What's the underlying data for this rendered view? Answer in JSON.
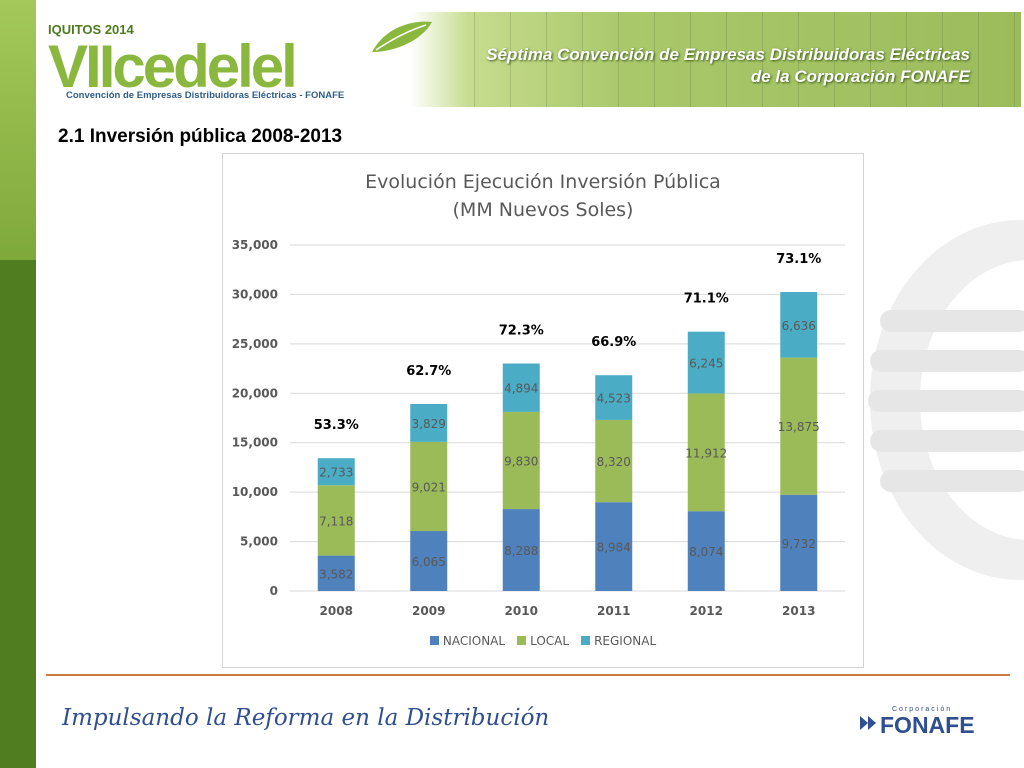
{
  "header": {
    "logo_year": "IQUITOS 2014",
    "logo_word": "VIIcedelel",
    "logo_subtitle": "Convención de Empresas Distribuidoras Eléctricas - FONAFE",
    "banner_line1": "Séptima Convención de Empresas Distribuidoras Eléctricas",
    "banner_line2": "de la Corporación FONAFE"
  },
  "section_title": "2.1 Inversión pública 2008-2013",
  "footer": {
    "tagline": "Impulsando la Reforma en la Distribución",
    "brand_small": "Corporación",
    "brand": "FONAFE"
  },
  "colors": {
    "nacional": "#4f81bd",
    "local": "#9bbb59",
    "regional": "#4bacc6"
  },
  "chart_data": {
    "type": "bar",
    "stacked": true,
    "title_line1": "Evolución Ejecución Inversión Pública",
    "title_line2": "(MM Nuevos Soles)",
    "categories": [
      "2008",
      "2009",
      "2010",
      "2011",
      "2012",
      "2013"
    ],
    "series": [
      {
        "name": "NACIONAL",
        "values": [
          3582,
          6065,
          8288,
          8984,
          8074,
          9732
        ]
      },
      {
        "name": "LOCAL",
        "values": [
          7118,
          9021,
          9830,
          8320,
          11912,
          13875
        ]
      },
      {
        "name": "REGIONAL",
        "values": [
          2733,
          3829,
          4894,
          4523,
          6245,
          6636
        ]
      }
    ],
    "value_labels": [
      [
        "3,582",
        "6,065",
        "8,288",
        "8,984",
        "8,074",
        "9,732"
      ],
      [
        "7,118",
        "9,021",
        "9,830",
        "8,320",
        "11,912",
        "13,875"
      ],
      [
        "2,733",
        "3,829",
        "4,894",
        "4,523",
        "6,245",
        "6,636"
      ]
    ],
    "top_labels": [
      "53.3%",
      "62.7%",
      "72.3%",
      "66.9%",
      "71.1%",
      "73.1%"
    ],
    "y_ticks": [
      "0",
      "5,000",
      "10,000",
      "15,000",
      "20,000",
      "25,000",
      "30,000",
      "35,000"
    ],
    "ylim": [
      0,
      35000
    ],
    "grid": true,
    "legend_position": "bottom"
  }
}
